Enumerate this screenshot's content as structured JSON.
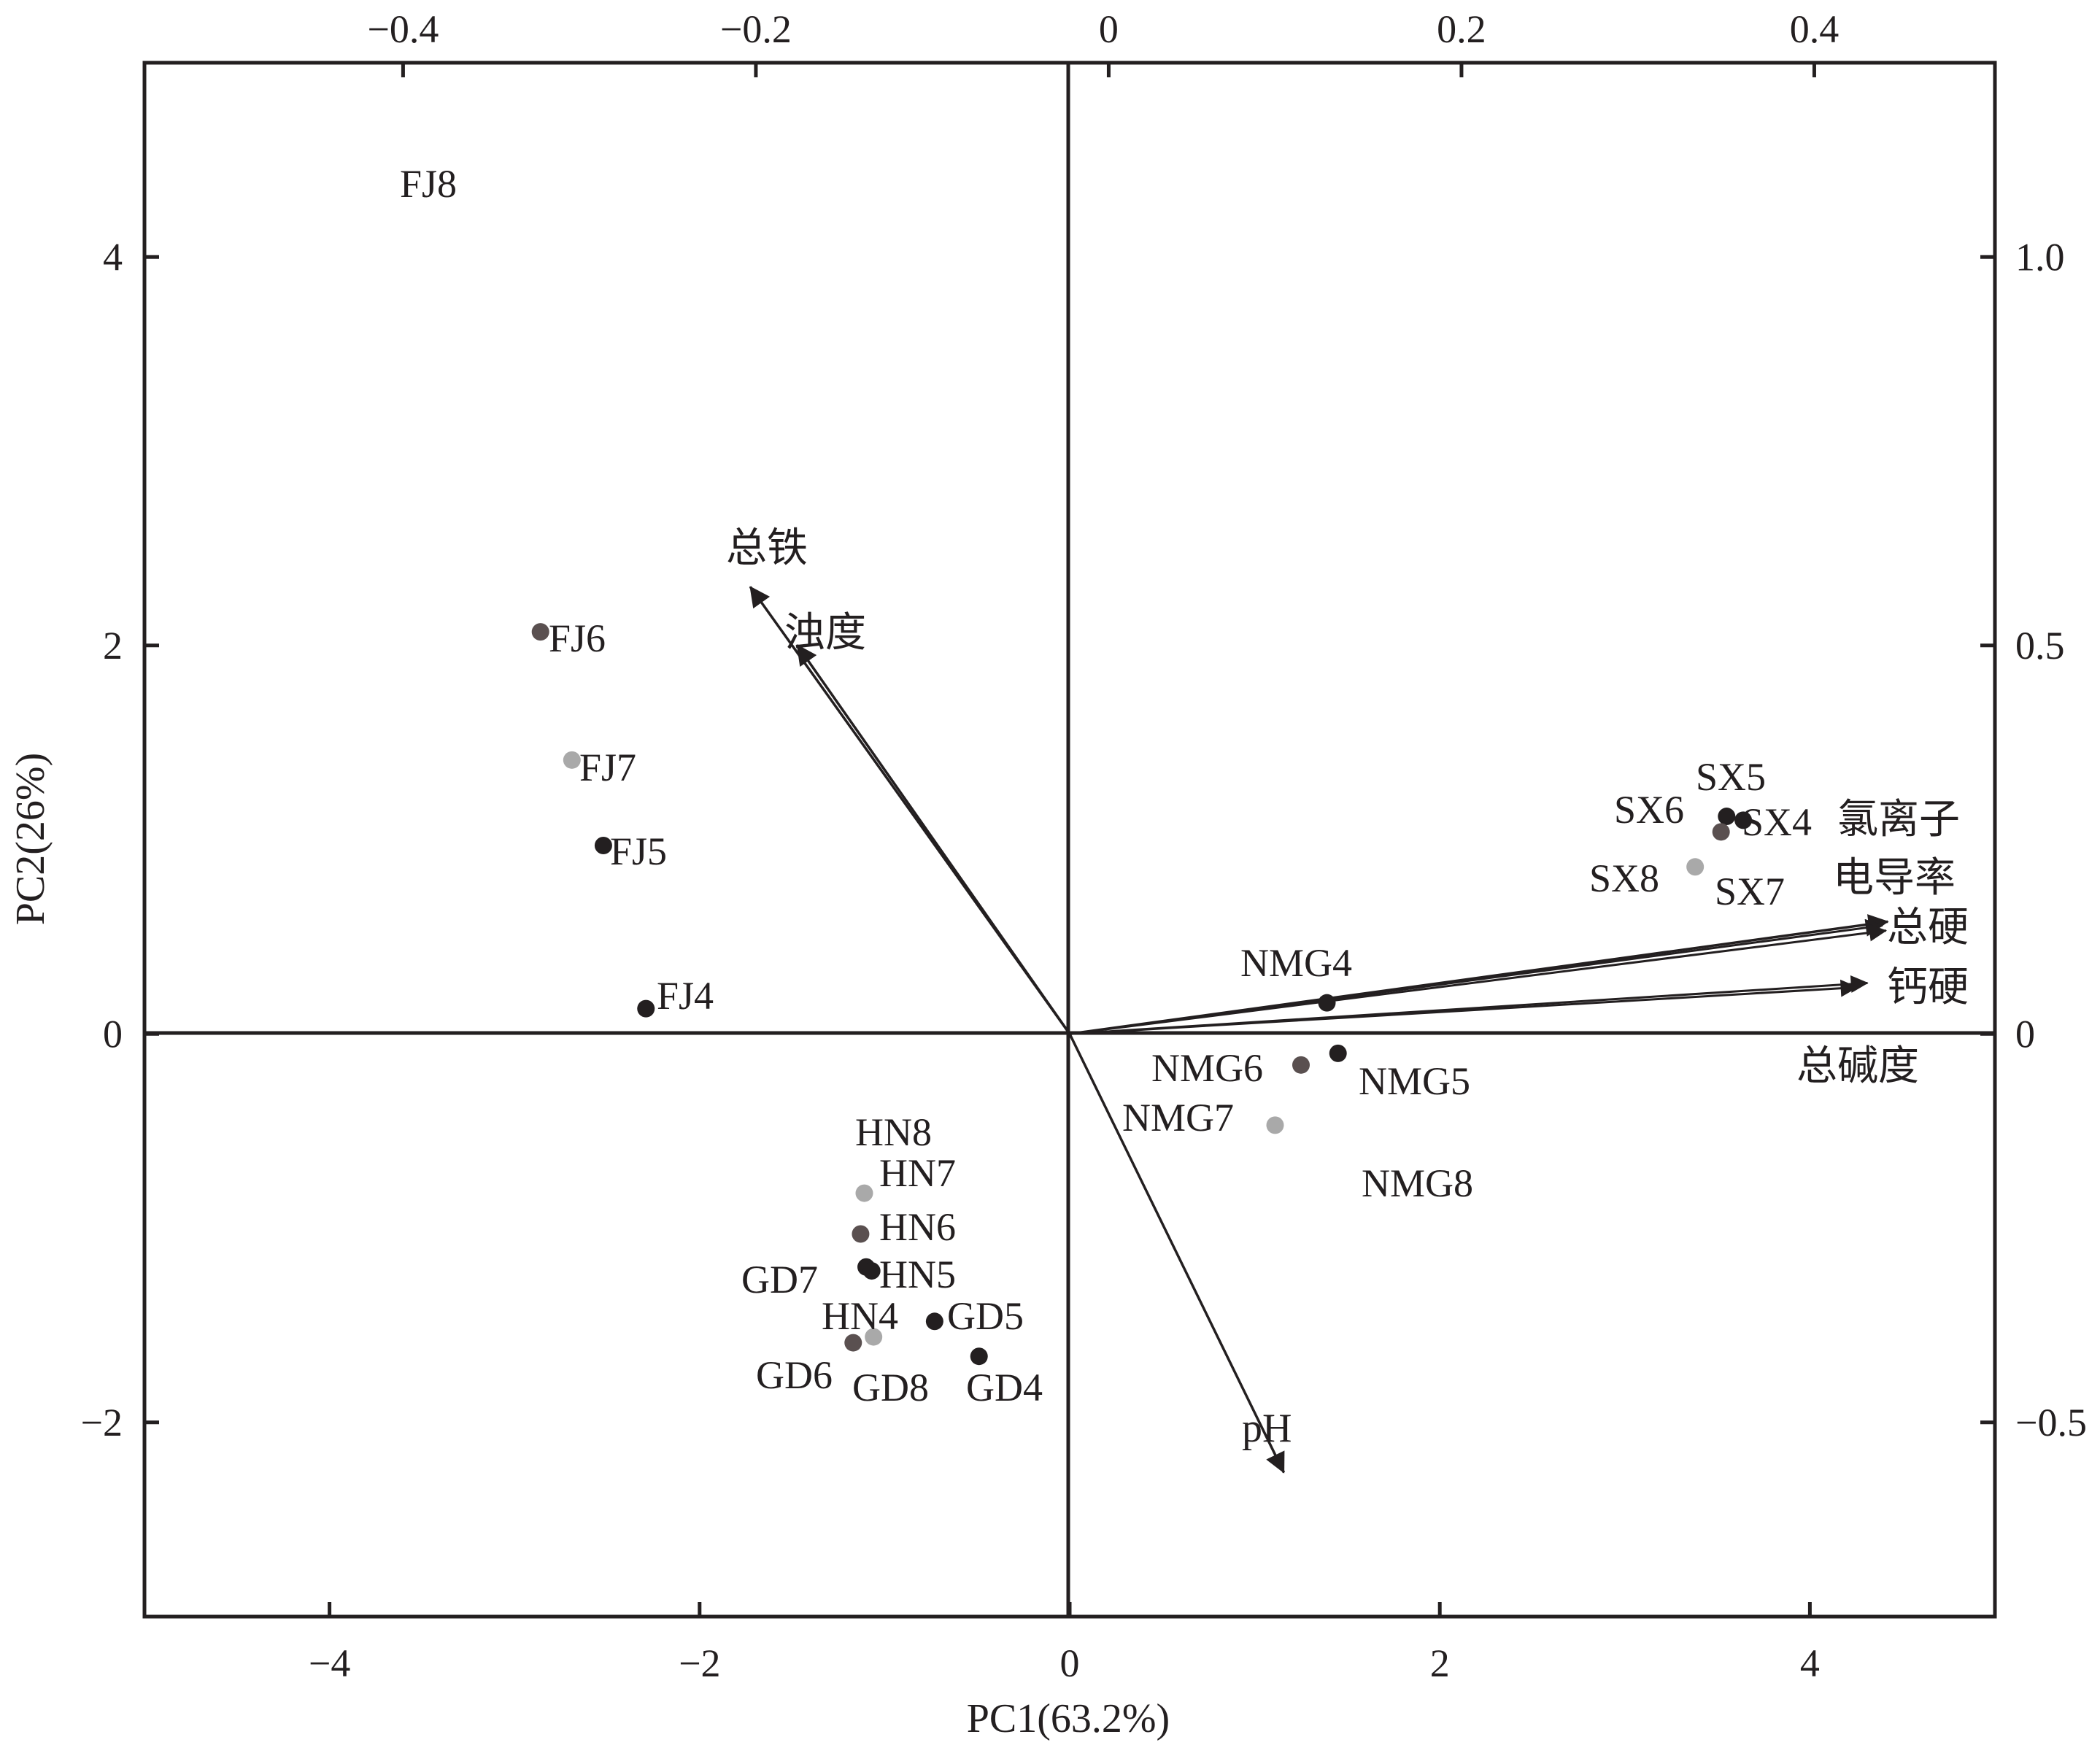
{
  "chart_data": {
    "type": "scatter",
    "subtype": "pca-biplot",
    "xlabel": "PC1(63.2%)",
    "ylabel": "PC2(26%)",
    "xlim": [
      -5,
      5
    ],
    "ylim": [
      -3,
      5
    ],
    "xticks": [
      -4,
      -2,
      0,
      2,
      4
    ],
    "xtick_labels": [
      "−4",
      "−2",
      "0",
      "2",
      "4"
    ],
    "yticks": [
      -2,
      0,
      2,
      4
    ],
    "ytick_labels": [
      "−2",
      "0",
      "2",
      "4"
    ],
    "top_axis": {
      "lim": [
        -0.5466,
        0.5024
      ],
      "ticks": [
        -0.4,
        -0.2,
        0,
        0.2,
        0.4
      ],
      "tick_labels": [
        "−0.4",
        "−0.2",
        "0",
        "0.2",
        "0.4"
      ]
    },
    "right_axis": {
      "lim": [
        -0.75,
        1.25
      ],
      "ticks": [
        -0.5,
        0,
        0.5,
        1.0
      ],
      "tick_labels": [
        "−0.5",
        "0",
        "0.5",
        "1.0"
      ]
    },
    "grid": false,
    "reference_lines": {
      "x": 0,
      "y": 0
    },
    "colors": {
      "axis": "#231f20",
      "point_dark": "#231f20",
      "point_mid": "#5a5050",
      "point_light": "#a9a9a9"
    },
    "points": [
      {
        "label": "FJ8",
        "x": null,
        "y": null,
        "shade": "none"
      },
      {
        "label": "FJ6",
        "x": -2.86,
        "y": 2.07,
        "shade": "mid"
      },
      {
        "label": "FJ7",
        "x": -2.69,
        "y": 1.41,
        "shade": "light"
      },
      {
        "label": "FJ5",
        "x": -2.52,
        "y": 0.97,
        "shade": "dark"
      },
      {
        "label": "FJ4",
        "x": -2.29,
        "y": 0.13,
        "shade": "dark"
      },
      {
        "label": "SX5",
        "x": 3.55,
        "y": 1.12,
        "shade": "dark"
      },
      {
        "label": "SX6",
        "x": 3.52,
        "y": 1.04,
        "shade": "mid"
      },
      {
        "label": "SX4",
        "x": 3.64,
        "y": 1.1,
        "shade": "dark"
      },
      {
        "label": "SX8",
        "x": 3.38,
        "y": 0.86,
        "shade": "light"
      },
      {
        "label": "SX7",
        "x": null,
        "y": null,
        "shade": "none"
      },
      {
        "label": "NMG4",
        "x": 1.39,
        "y": 0.16,
        "shade": "dark"
      },
      {
        "label": "NMG6",
        "x": 1.25,
        "y": -0.16,
        "shade": "mid"
      },
      {
        "label": "NMG5",
        "x": 1.45,
        "y": -0.1,
        "shade": "dark"
      },
      {
        "label": "NMG7",
        "x": 1.11,
        "y": -0.47,
        "shade": "light"
      },
      {
        "label": "NMG8",
        "x": null,
        "y": null,
        "shade": "none"
      },
      {
        "label": "HN8",
        "x": -1.11,
        "y": -0.82,
        "shade": "light"
      },
      {
        "label": "HN7",
        "x": -1.13,
        "y": -1.03,
        "shade": "mid"
      },
      {
        "label": "HN6",
        "x": -1.1,
        "y": -1.2,
        "shade": "dark"
      },
      {
        "label": "HN5",
        "x": -1.07,
        "y": -1.22,
        "shade": "dark"
      },
      {
        "label": "GD7",
        "x": null,
        "y": null,
        "shade": "none"
      },
      {
        "label": "HN4",
        "x": -1.06,
        "y": -1.56,
        "shade": "light"
      },
      {
        "label": "GD5",
        "x": -0.73,
        "y": -1.48,
        "shade": "dark"
      },
      {
        "label": "GD6",
        "x": -1.17,
        "y": -1.59,
        "shade": "mid"
      },
      {
        "label": "GD8",
        "x": null,
        "y": null,
        "shade": "none"
      },
      {
        "label": "GD4",
        "x": -0.49,
        "y": -1.66,
        "shade": "dark"
      }
    ],
    "loadings": [
      {
        "label": "总铁",
        "x": -0.2032,
        "y": 0.5755
      },
      {
        "label": "浊度",
        "x": -0.1766,
        "y": 0.5005
      },
      {
        "label": "氯离子",
        "x": 0.4417,
        "y": 0.1445
      },
      {
        "label": "电导率",
        "x": 0.4386,
        "y": 0.1395
      },
      {
        "label": "总硬",
        "x": 0.4407,
        "y": 0.133
      },
      {
        "label": "钙硬",
        "x": 0.4302,
        "y": 0.0655
      },
      {
        "label": "总碱度",
        "x": 0.4244,
        "y": 0.06
      },
      {
        "label": "pH",
        "x": 0.0993,
        "y": -0.5645
      }
    ]
  }
}
